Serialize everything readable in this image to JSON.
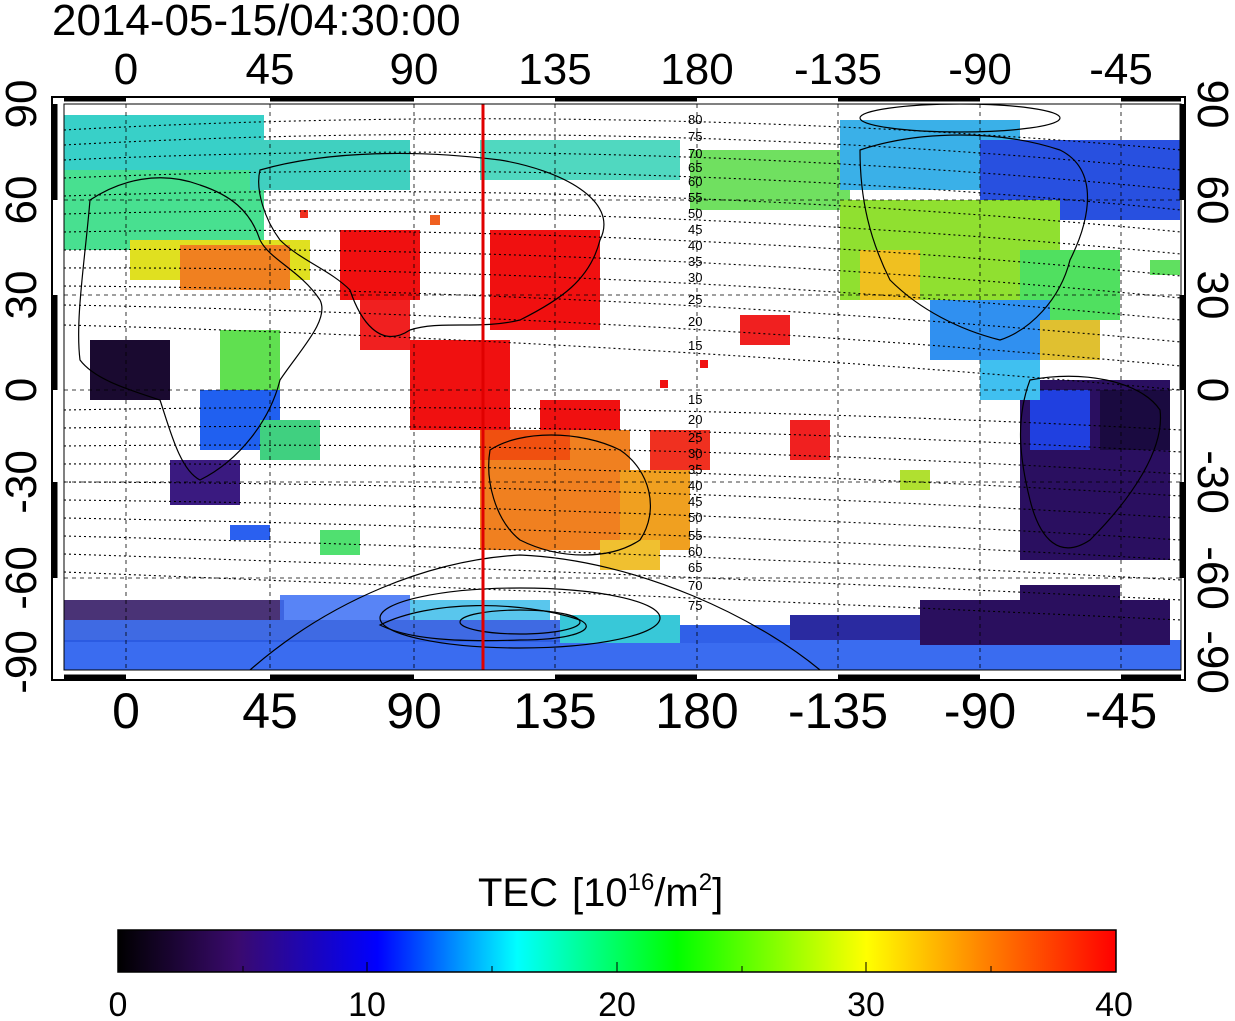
{
  "map": {
    "timestamp": "2014-05-15/04:30:00",
    "projection": "equirectangular",
    "central_longitude_label_left": "0",
    "lon_ticks": [
      "0",
      "45",
      "90",
      "135",
      "180",
      "-135",
      "-90",
      "-45"
    ],
    "lat_ticks": [
      "90",
      "60",
      "30",
      "0",
      "-30",
      "-60",
      "-90"
    ],
    "subsolar_meridian_label": "red vertical line near 113E",
    "contour_labels_north": [
      "80",
      "75",
      "70",
      "65",
      "60",
      "55",
      "50",
      "45",
      "40",
      "35",
      "30",
      "25",
      "20",
      "15"
    ],
    "contour_labels_south": [
      "15",
      "20",
      "25",
      "30",
      "35",
      "40",
      "45",
      "50",
      "55",
      "60",
      "65",
      "70",
      "75"
    ],
    "colors": {
      "frame": "#000000",
      "meridian_line": "#e00000",
      "coast": "#000000"
    }
  },
  "colorbar": {
    "title_prefix": "TEC",
    "title_units_a": "[10",
    "title_units_sup1": "16",
    "title_units_b": "/m",
    "title_units_sup2": "2",
    "title_units_c": "]",
    "tick_labels": [
      "0",
      "10",
      "20",
      "30",
      "40"
    ],
    "range": [
      0,
      40
    ],
    "stops": [
      "#000000",
      "#3a0a6e",
      "#0000ff",
      "#00ffff",
      "#00ff00",
      "#ffff00",
      "#ff8000",
      "#ff0000"
    ]
  }
}
